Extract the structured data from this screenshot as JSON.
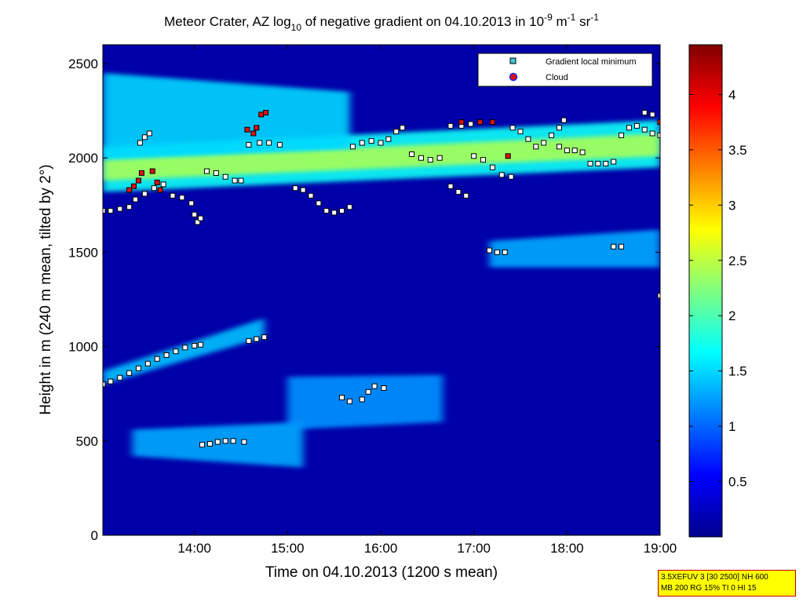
{
  "chart_data": {
    "type": "heatmap",
    "title_parts": [
      "Meteor Crater, AZ log",
      "10",
      " of negative gradient on 04.10.2013 in 10",
      "-9",
      " m",
      "-1",
      " sr",
      "-1"
    ],
    "xlabel": "Time on 04.10.2013 (1200 s mean)",
    "ylabel": "Height in m (240 m mean, tilted by 2°)",
    "xlim": [
      "13:01",
      "19:00"
    ],
    "ylim": [
      0,
      2600
    ],
    "x_ticks": [
      "14:00",
      "15:00",
      "16:00",
      "17:00",
      "18:00",
      "19:00"
    ],
    "y_ticks": [
      "0",
      "500",
      "1000",
      "1500",
      "2000",
      "2500"
    ],
    "colorbar": {
      "range": [
        0,
        4.45
      ],
      "ticks": [
        "0.5",
        "1",
        "1.5",
        "2",
        "2.5",
        "3",
        "3.5",
        "4"
      ],
      "colormap": "jet"
    },
    "legend": {
      "placement": "top-right",
      "entries": [
        {
          "label": "Gradient local minimum",
          "marker": "square",
          "color": "#3ec8d8"
        },
        {
          "label": "Cloud",
          "marker": "circle",
          "color": "#e01010"
        }
      ]
    },
    "layers": [
      {
        "t0": "13:01",
        "t1": "19:00",
        "h0": 1820,
        "h1": 2060,
        "h_end0": 1950,
        "h_end1": 2200,
        "level": 1.7
      },
      {
        "t0": "13:01",
        "t1": "19:00",
        "h0": 1880,
        "h1": 1990,
        "h_end0": 2010,
        "h_end1": 2130,
        "level": 2.4
      },
      {
        "t0": "13:01",
        "t1": "15:40",
        "h0": 2000,
        "h1": 2450,
        "h_end0": 2050,
        "h_end1": 2350,
        "level": 1.5
      },
      {
        "t0": "13:01",
        "t1": "14:45",
        "h0": 800,
        "h1": 870,
        "h_end0": 1050,
        "h_end1": 1150,
        "level": 1.4
      },
      {
        "t0": "13:20",
        "t1": "15:10",
        "h0": 420,
        "h1": 560,
        "h_end0": 360,
        "h_end1": 600,
        "level": 1.3
      },
      {
        "t0": "15:00",
        "t1": "16:40",
        "h0": 560,
        "h1": 840,
        "h_end0": 600,
        "h_end1": 850,
        "level": 1.2
      },
      {
        "t0": "17:10",
        "t1": "19:00",
        "h0": 1420,
        "h1": 1560,
        "h_end0": 1420,
        "h_end1": 1620,
        "level": 1.3
      }
    ],
    "gradient_local_minimum": [
      [
        "13:01",
        800
      ],
      [
        "13:06",
        815
      ],
      [
        "13:12",
        835
      ],
      [
        "13:18",
        860
      ],
      [
        "13:24",
        885
      ],
      [
        "13:30",
        910
      ],
      [
        "13:36",
        935
      ],
      [
        "13:42",
        955
      ],
      [
        "13:48",
        975
      ],
      [
        "13:54",
        995
      ],
      [
        "14:00",
        1005
      ],
      [
        "14:04",
        1010
      ],
      [
        "14:05",
        480
      ],
      [
        "14:10",
        485
      ],
      [
        "14:15",
        495
      ],
      [
        "14:20",
        500
      ],
      [
        "14:25",
        500
      ],
      [
        "14:32",
        495
      ],
      [
        "14:35",
        1030
      ],
      [
        "14:40",
        1040
      ],
      [
        "14:45",
        1050
      ],
      [
        "15:35",
        730
      ],
      [
        "15:40",
        710
      ],
      [
        "15:48",
        720
      ],
      [
        "15:52",
        760
      ],
      [
        "15:56",
        790
      ],
      [
        "16:02",
        780
      ],
      [
        "13:01",
        1720
      ],
      [
        "13:06",
        1720
      ],
      [
        "13:12",
        1730
      ],
      [
        "13:18",
        1740
      ],
      [
        "13:22",
        1780
      ],
      [
        "13:28",
        1810
      ],
      [
        "13:34",
        1840
      ],
      [
        "13:40",
        1860
      ],
      [
        "13:25",
        2080
      ],
      [
        "13:28",
        2110
      ],
      [
        "13:31",
        2130
      ],
      [
        "13:46",
        1800
      ],
      [
        "13:52",
        1790
      ],
      [
        "13:58",
        1760
      ],
      [
        "14:00",
        1700
      ],
      [
        "14:02",
        1660
      ],
      [
        "14:04",
        1680
      ],
      [
        "14:08",
        1930
      ],
      [
        "14:14",
        1920
      ],
      [
        "14:20",
        1900
      ],
      [
        "14:26",
        1880
      ],
      [
        "14:30",
        1880
      ],
      [
        "14:35",
        2070
      ],
      [
        "14:42",
        2080
      ],
      [
        "14:48",
        2080
      ],
      [
        "14:55",
        2070
      ],
      [
        "15:05",
        1840
      ],
      [
        "15:10",
        1830
      ],
      [
        "15:15",
        1800
      ],
      [
        "15:20",
        1760
      ],
      [
        "15:25",
        1720
      ],
      [
        "15:30",
        1710
      ],
      [
        "15:35",
        1720
      ],
      [
        "15:40",
        1740
      ],
      [
        "15:42",
        2060
      ],
      [
        "15:48",
        2080
      ],
      [
        "15:54",
        2090
      ],
      [
        "16:00",
        2080
      ],
      [
        "16:05",
        2100
      ],
      [
        "16:10",
        2140
      ],
      [
        "16:14",
        2160
      ],
      [
        "16:20",
        2020
      ],
      [
        "16:26",
        2000
      ],
      [
        "16:32",
        1990
      ],
      [
        "16:38",
        2000
      ],
      [
        "16:45",
        1850
      ],
      [
        "16:50",
        1820
      ],
      [
        "16:55",
        1800
      ],
      [
        "16:45",
        2170
      ],
      [
        "16:52",
        2170
      ],
      [
        "16:58",
        2180
      ],
      [
        "17:00",
        2010
      ],
      [
        "17:06",
        1990
      ],
      [
        "17:12",
        1950
      ],
      [
        "17:18",
        1910
      ],
      [
        "17:24",
        1900
      ],
      [
        "17:10",
        1510
      ],
      [
        "17:15",
        1500
      ],
      [
        "17:20",
        1500
      ],
      [
        "17:25",
        2160
      ],
      [
        "17:30",
        2140
      ],
      [
        "17:35",
        2100
      ],
      [
        "17:40",
        2060
      ],
      [
        "17:45",
        2080
      ],
      [
        "17:50",
        2120
      ],
      [
        "17:55",
        2160
      ],
      [
        "17:58",
        2200
      ],
      [
        "17:55",
        2060
      ],
      [
        "18:00",
        2040
      ],
      [
        "18:05",
        2040
      ],
      [
        "18:10",
        2030
      ],
      [
        "18:15",
        1970
      ],
      [
        "18:20",
        1970
      ],
      [
        "18:25",
        1970
      ],
      [
        "18:30",
        1980
      ],
      [
        "18:35",
        2120
      ],
      [
        "18:40",
        2160
      ],
      [
        "18:45",
        2170
      ],
      [
        "18:50",
        2150
      ],
      [
        "18:55",
        2130
      ],
      [
        "19:00",
        2120
      ],
      [
        "18:30",
        1530
      ],
      [
        "18:35",
        1530
      ],
      [
        "18:50",
        2240
      ],
      [
        "18:55",
        2230
      ],
      [
        "19:00",
        1270
      ]
    ],
    "cloud": [
      [
        "13:18",
        1830
      ],
      [
        "13:21",
        1850
      ],
      [
        "13:24",
        1880
      ],
      [
        "13:26",
        1920
      ],
      [
        "13:33",
        1930
      ],
      [
        "13:36",
        1870
      ],
      [
        "13:38",
        1830
      ],
      [
        "14:34",
        2150
      ],
      [
        "14:38",
        2130
      ],
      [
        "14:40",
        2160
      ],
      [
        "14:43",
        2230
      ],
      [
        "14:46",
        2240
      ],
      [
        "16:52",
        2190
      ],
      [
        "17:04",
        2190
      ],
      [
        "17:12",
        2190
      ],
      [
        "17:22",
        2010
      ],
      [
        "19:00",
        2190
      ]
    ]
  },
  "info_box": {
    "line1": "3.5XEFUV 3 [30 2500] NH 600",
    "line2": "MB 200 RG 15% TI 0 HI 15"
  }
}
